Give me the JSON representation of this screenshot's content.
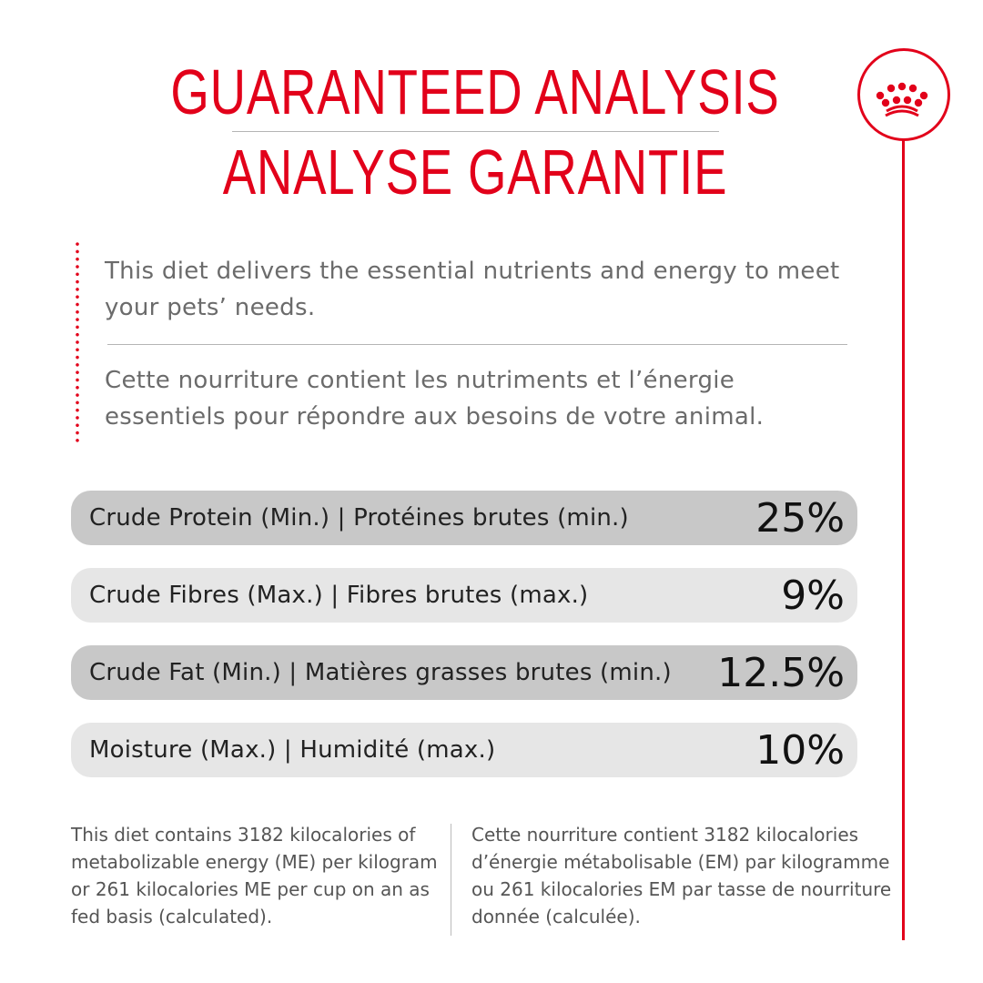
{
  "colors": {
    "accent": "#e2001a",
    "row_dark": "#c8c8c8",
    "row_light": "#e6e6e6"
  },
  "header": {
    "title_en": "GUARANTEED ANALYSIS",
    "title_fr": "ANALYSE GARANTIE",
    "logo": "royal-canin-crown-icon"
  },
  "intro": {
    "en": "This diet delivers the essential nutrients and energy to meet your pets’ needs.",
    "fr": "Cette nourriture contient les nutriments et l’énergie essentiels pour répondre aux besoins de votre animal."
  },
  "analysis": [
    {
      "label": "Crude Protein (Min.) | Protéines brutes (min.)",
      "value": "25%"
    },
    {
      "label": "Crude Fibres (Max.) | Fibres brutes (max.)",
      "value": "9%"
    },
    {
      "label": "Crude Fat (Min.) | Matières grasses brutes (min.)",
      "value": "12.5%"
    },
    {
      "label": "Moisture (Max.) | Humidité (max.)",
      "value": "10%"
    }
  ],
  "footer": {
    "en": "This diet contains 3182 kilocalories of metabolizable energy (ME) per kilogram or 261 kilocalories ME per cup on an as fed basis (calculated).",
    "fr": "Cette nourriture contient 3182 kilocalories d’énergie métabolisable (EM) par kilogramme ou 261 kilocalories EM par tasse de nourriture donnée (calculée)."
  }
}
